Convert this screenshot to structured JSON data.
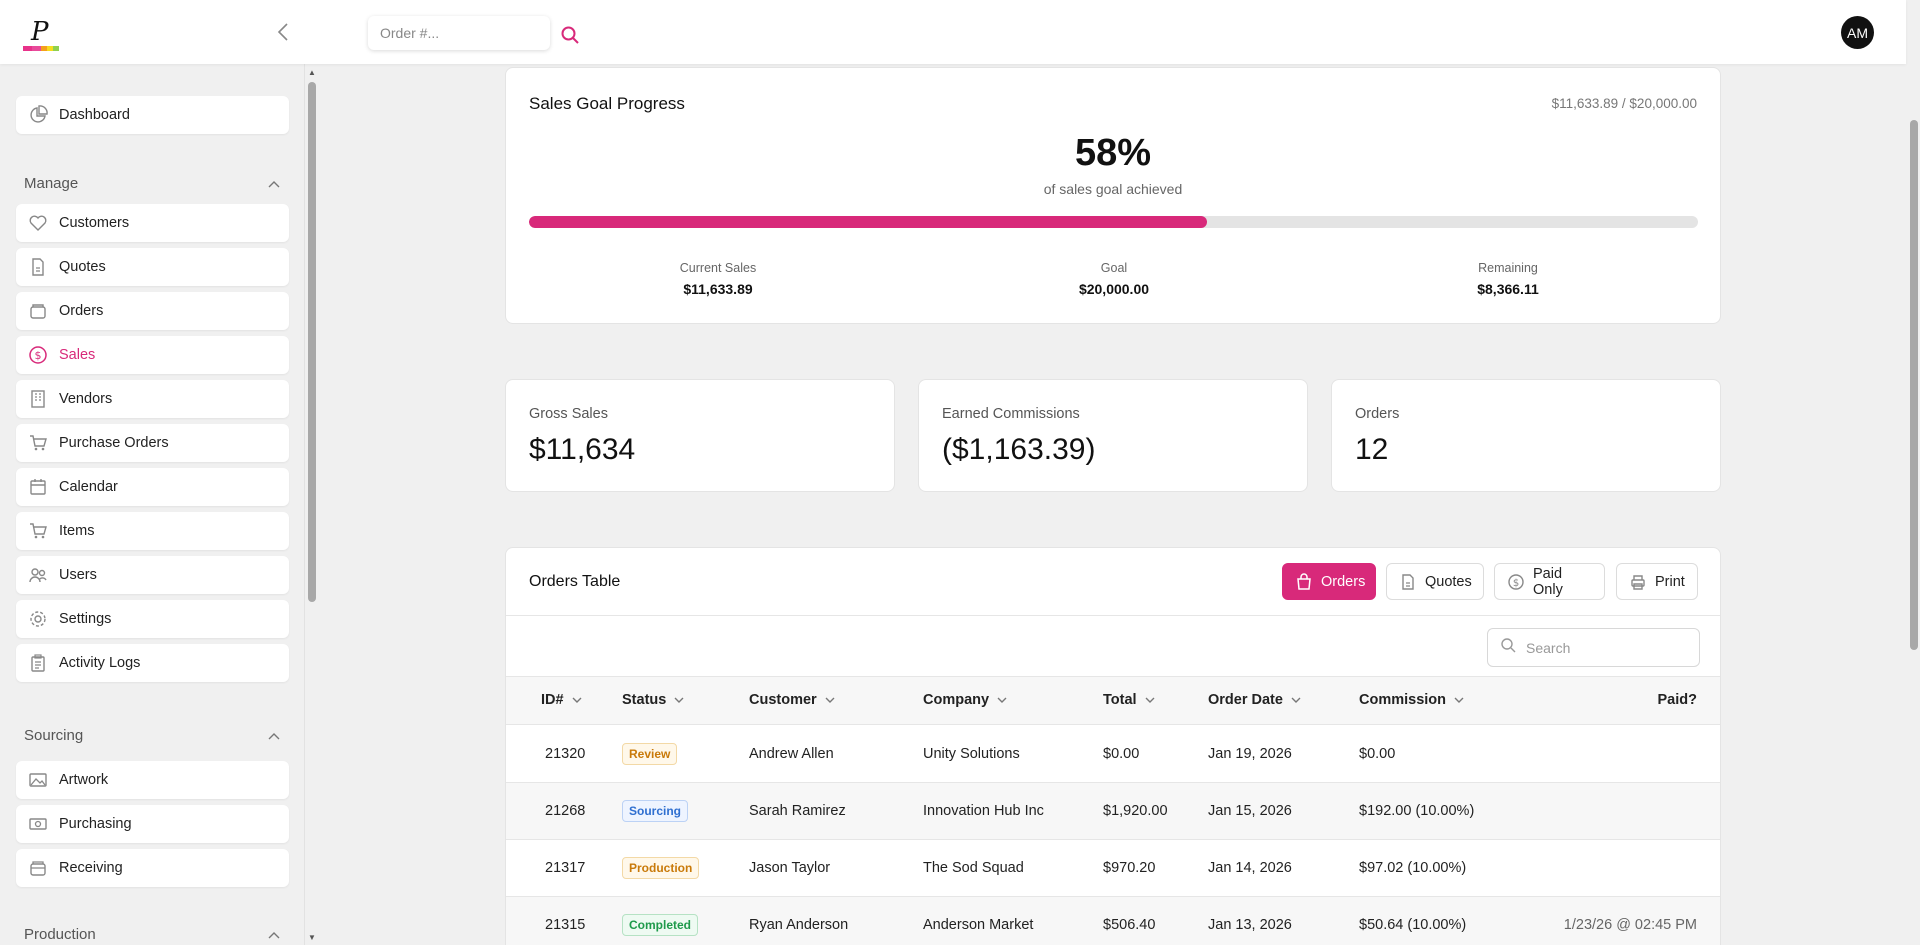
{
  "header": {
    "search_placeholder": "Order #...",
    "avatar_initials": "AM"
  },
  "sidebar": {
    "dashboard": "Dashboard",
    "sections": {
      "manage": "Manage",
      "sourcing": "Sourcing",
      "production": "Production"
    },
    "manage_items": [
      {
        "label": "Customers",
        "icon": "heart-icon"
      },
      {
        "label": "Quotes",
        "icon": "document-icon"
      },
      {
        "label": "Orders",
        "icon": "orders-icon"
      },
      {
        "label": "Sales",
        "icon": "dollar-circle-icon",
        "active": true
      },
      {
        "label": "Vendors",
        "icon": "building-icon"
      },
      {
        "label": "Purchase Orders",
        "icon": "cart-icon"
      },
      {
        "label": "Calendar",
        "icon": "calendar-icon"
      },
      {
        "label": "Items",
        "icon": "cart-icon"
      },
      {
        "label": "Users",
        "icon": "users-icon"
      },
      {
        "label": "Settings",
        "icon": "gear-icon"
      },
      {
        "label": "Activity Logs",
        "icon": "clipboard-icon"
      }
    ],
    "sourcing_items": [
      {
        "label": "Artwork",
        "icon": "image-icon"
      },
      {
        "label": "Purchasing",
        "icon": "purchasing-icon"
      },
      {
        "label": "Receiving",
        "icon": "box-icon"
      }
    ]
  },
  "goal": {
    "title": "Sales Goal Progress",
    "ratio": "$11,633.89 / $20,000.00",
    "percent_label": "58%",
    "progress_fraction": 0.58,
    "subtitle": "of sales goal achieved",
    "stats": [
      {
        "label": "Current Sales",
        "value": "$11,633.89"
      },
      {
        "label": "Goal",
        "value": "$20,000.00"
      },
      {
        "label": "Remaining",
        "value": "$8,366.11"
      }
    ]
  },
  "kpis": [
    {
      "label": "Gross Sales",
      "value": "$11,634"
    },
    {
      "label": "Earned Commissions",
      "value": "($1,163.39)"
    },
    {
      "label": "Orders",
      "value": "12"
    }
  ],
  "orders_table": {
    "title": "Orders Table",
    "buttons": {
      "orders": "Orders",
      "quotes": "Quotes",
      "paid_only": "Paid Only",
      "print": "Print"
    },
    "search_placeholder": "Search",
    "columns": [
      "ID#",
      "Status",
      "Customer",
      "Company",
      "Total",
      "Order Date",
      "Commission",
      "Paid?"
    ],
    "rows": [
      {
        "id": "21320",
        "status": "Review",
        "customer": "Andrew Allen",
        "company": "Unity Solutions",
        "total": "$0.00",
        "date": "Jan 19, 2026",
        "commission": "$0.00",
        "paid": ""
      },
      {
        "id": "21268",
        "status": "Sourcing",
        "customer": "Sarah Ramirez",
        "company": "Innovation Hub Inc",
        "total": "$1,920.00",
        "date": "Jan 15, 2026",
        "commission": "$192.00 (10.00%)",
        "paid": ""
      },
      {
        "id": "21317",
        "status": "Production",
        "customer": "Jason Taylor",
        "company": "The Sod Squad",
        "total": "$970.20",
        "date": "Jan 14, 2026",
        "commission": "$97.02 (10.00%)",
        "paid": ""
      },
      {
        "id": "21315",
        "status": "Completed",
        "customer": "Ryan Anderson",
        "company": "Anderson Market",
        "total": "$506.40",
        "date": "Jan 13, 2026",
        "commission": "$50.64 (10.00%)",
        "paid": "1/23/26 @ 02:45 PM"
      }
    ],
    "status_colors": {
      "Review": {
        "fg": "#c97a0a",
        "bg": "#fff8ea",
        "border": "#f3d9a6"
      },
      "Sourcing": {
        "fg": "#2f6fd0",
        "bg": "#eef4ff",
        "border": "#bcd2f5"
      },
      "Production": {
        "fg": "#c97a0a",
        "bg": "#fff8ea",
        "border": "#f3d9a6"
      },
      "Completed": {
        "fg": "#1f9a4b",
        "bg": "#eefaf2",
        "border": "#b6e2c4"
      }
    }
  },
  "colors": {
    "accent": "#d8297a"
  }
}
